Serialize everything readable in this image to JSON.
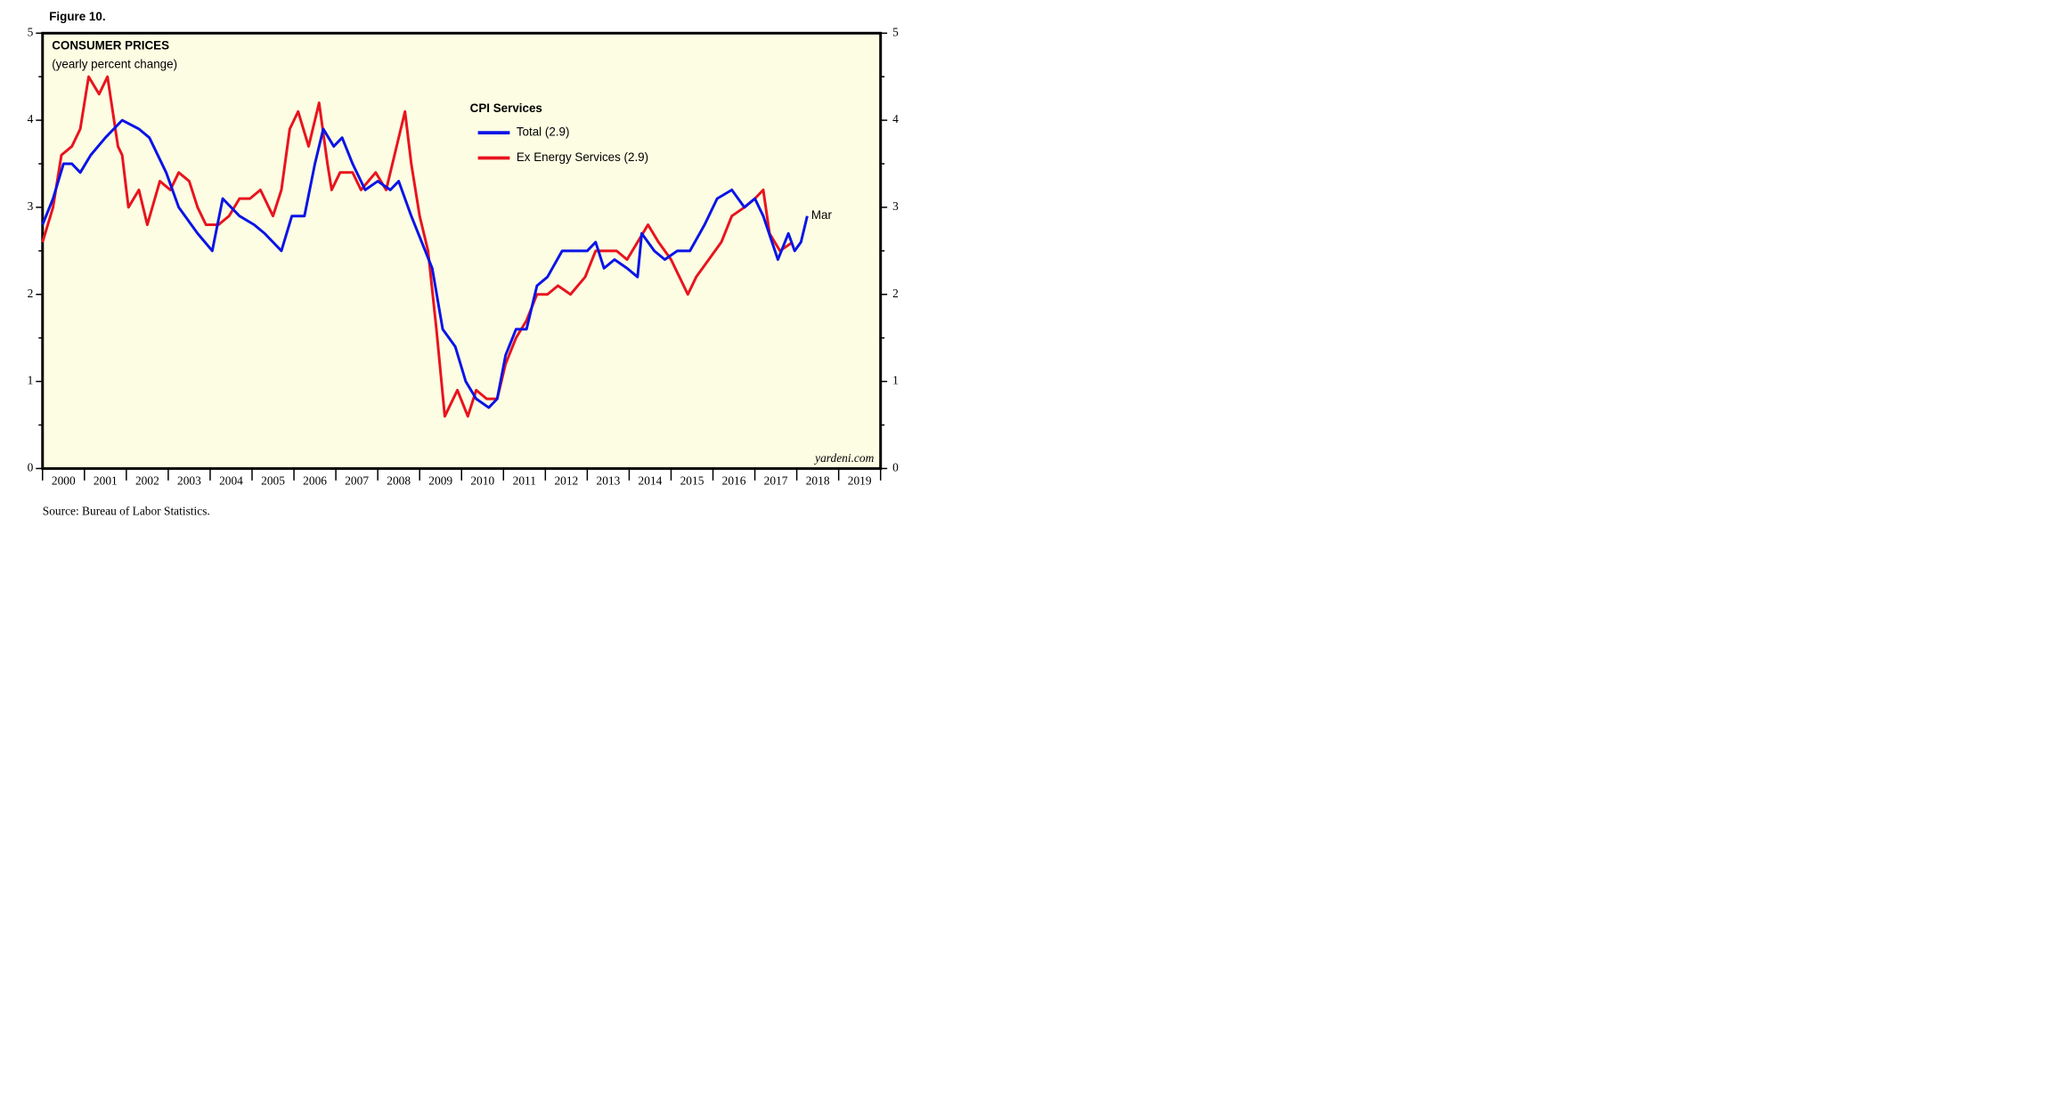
{
  "figure_label": "Figure 10.",
  "chart_data": {
    "type": "line",
    "title": "CONSUMER PRICES",
    "subtitle": "(yearly percent change)",
    "legend_title": "CPI Services",
    "legend": "top-center",
    "annotation": {
      "text": "Mar",
      "series": 0
    },
    "watermark": "yardeni.com",
    "source": "Source: Bureau of Labor Statistics.",
    "xlim": [
      2000,
      2020
    ],
    "xticks": [
      2000,
      2001,
      2002,
      2003,
      2004,
      2005,
      2006,
      2007,
      2008,
      2009,
      2010,
      2011,
      2012,
      2013,
      2014,
      2015,
      2016,
      2017,
      2018,
      2019
    ],
    "ylim": [
      0,
      5
    ],
    "yticks": [
      0,
      1,
      2,
      3,
      4,
      5
    ],
    "background": "#fdfde3",
    "series": [
      {
        "name": "Total (2.9)",
        "color": "#0a14e6",
        "x": [
          2000.0,
          2000.25,
          2000.5,
          2000.7,
          2000.9,
          2001.15,
          2001.5,
          2001.9,
          2002.3,
          2002.55,
          2002.95,
          2003.25,
          2003.7,
          2004.05,
          2004.3,
          2004.7,
          2005.05,
          2005.3,
          2005.7,
          2005.95,
          2006.25,
          2006.5,
          2006.7,
          2006.95,
          2007.15,
          2007.4,
          2007.7,
          2008.0,
          2008.3,
          2008.5,
          2008.8,
          2009.05,
          2009.3,
          2009.55,
          2009.85,
          2010.1,
          2010.35,
          2010.65,
          2010.85,
          2011.05,
          2011.3,
          2011.55,
          2011.8,
          2012.05,
          2012.4,
          2012.7,
          2013.0,
          2013.2,
          2013.4,
          2013.65,
          2013.95,
          2014.2,
          2014.3,
          2014.6,
          2014.85,
          2015.15,
          2015.45,
          2015.8,
          2016.1,
          2016.45,
          2016.75,
          2017.0,
          2017.2,
          2017.55,
          2017.8,
          2017.95,
          2018.1,
          2018.25
        ],
        "values": [
          2.8,
          3.1,
          3.5,
          3.5,
          3.4,
          3.6,
          3.8,
          4.0,
          3.9,
          3.8,
          3.4,
          3.0,
          2.7,
          2.5,
          3.1,
          2.9,
          2.8,
          2.7,
          2.5,
          2.9,
          2.9,
          3.5,
          3.9,
          3.7,
          3.8,
          3.5,
          3.2,
          3.3,
          3.2,
          3.3,
          2.9,
          2.6,
          2.3,
          1.6,
          1.4,
          1.0,
          0.8,
          0.7,
          0.8,
          1.3,
          1.6,
          1.6,
          2.1,
          2.2,
          2.5,
          2.5,
          2.5,
          2.6,
          2.3,
          2.4,
          2.3,
          2.2,
          2.7,
          2.5,
          2.4,
          2.5,
          2.5,
          2.8,
          3.1,
          3.2,
          3.0,
          3.1,
          2.9,
          2.4,
          2.7,
          2.5,
          2.6,
          2.9
        ]
      },
      {
        "name": "Ex Energy Services (2.9)",
        "color": "#e8141e",
        "x": [
          2000.0,
          2000.25,
          2000.45,
          2000.7,
          2000.9,
          2001.1,
          2001.35,
          2001.55,
          2001.8,
          2001.9,
          2002.05,
          2002.3,
          2002.5,
          2002.8,
          2003.05,
          2003.25,
          2003.5,
          2003.7,
          2003.9,
          2004.2,
          2004.45,
          2004.7,
          2004.95,
          2005.2,
          2005.5,
          2005.7,
          2005.9,
          2006.1,
          2006.35,
          2006.6,
          2006.8,
          2006.9,
          2007.1,
          2007.4,
          2007.6,
          2007.95,
          2008.2,
          2008.45,
          2008.65,
          2008.8,
          2009.0,
          2009.2,
          2009.4,
          2009.6,
          2009.9,
          2010.15,
          2010.35,
          2010.6,
          2010.85,
          2011.05,
          2011.3,
          2011.55,
          2011.8,
          2012.05,
          2012.3,
          2012.6,
          2012.95,
          2013.2,
          2013.45,
          2013.7,
          2013.95,
          2014.2,
          2014.45,
          2014.7,
          2015.0,
          2015.2,
          2015.4,
          2015.6,
          2015.9,
          2016.2,
          2016.45,
          2016.75,
          2017.0,
          2017.2,
          2017.35,
          2017.6,
          2017.9
        ],
        "values": [
          2.6,
          3.0,
          3.6,
          3.7,
          3.9,
          4.5,
          4.3,
          4.5,
          3.7,
          3.6,
          3.0,
          3.2,
          2.8,
          3.3,
          3.2,
          3.4,
          3.3,
          3.0,
          2.8,
          2.8,
          2.9,
          3.1,
          3.1,
          3.2,
          2.9,
          3.2,
          3.9,
          4.1,
          3.7,
          4.2,
          3.5,
          3.2,
          3.4,
          3.4,
          3.2,
          3.4,
          3.2,
          3.7,
          4.1,
          3.5,
          2.9,
          2.5,
          1.6,
          0.6,
          0.9,
          0.6,
          0.9,
          0.8,
          0.8,
          1.2,
          1.5,
          1.7,
          2.0,
          2.0,
          2.1,
          2.0,
          2.2,
          2.5,
          2.5,
          2.5,
          2.4,
          2.6,
          2.8,
          2.6,
          2.4,
          2.2,
          2.0,
          2.2,
          2.4,
          2.6,
          2.9,
          3.0,
          3.1,
          3.2,
          2.7,
          2.5,
          2.6
        ]
      }
    ]
  }
}
